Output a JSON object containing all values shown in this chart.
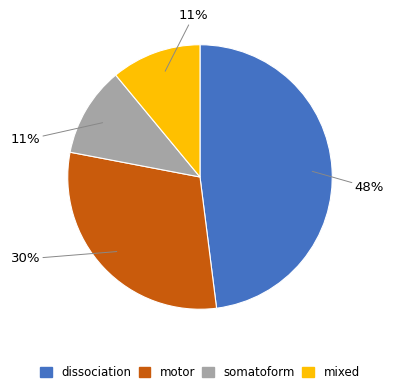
{
  "labels": [
    "dissociation",
    "motor",
    "somatoform",
    "mixed"
  ],
  "values": [
    48,
    30,
    11,
    11
  ],
  "colors": [
    "#4472C4",
    "#C95B0C",
    "#A5A5A5",
    "#FFC000"
  ],
  "figsize": [
    4.0,
    3.89
  ],
  "dpi": 100,
  "startangle": 90,
  "label_info": [
    {
      "pct": "48%",
      "xt": 1.28,
      "yt": -0.08
    },
    {
      "pct": "30%",
      "xt": -1.32,
      "yt": -0.62
    },
    {
      "pct": "11%",
      "xt": -1.32,
      "yt": 0.28
    },
    {
      "pct": "11%",
      "xt": -0.05,
      "yt": 1.22
    }
  ],
  "legend_labels": [
    "dissociation",
    "motor",
    "somatoform",
    "mixed"
  ]
}
